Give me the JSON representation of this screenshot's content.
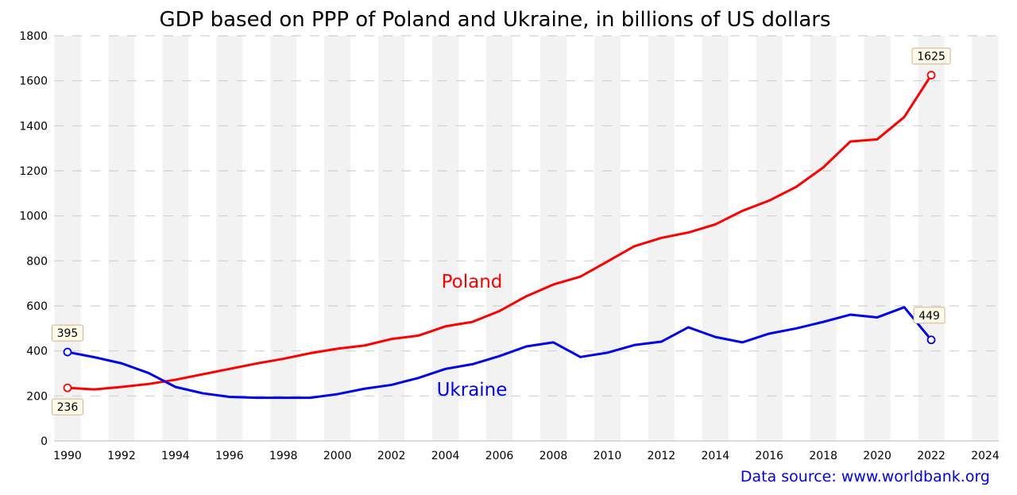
{
  "chart_data": {
    "type": "line",
    "title": "GDP based on PPP of Poland and Ukraine, in billions of US dollars",
    "xlabel": "",
    "ylabel": "",
    "x": [
      1990,
      1991,
      1992,
      1993,
      1994,
      1995,
      1996,
      1997,
      1998,
      1999,
      2000,
      2001,
      2002,
      2003,
      2004,
      2005,
      2006,
      2007,
      2008,
      2009,
      2010,
      2011,
      2012,
      2013,
      2014,
      2015,
      2016,
      2017,
      2018,
      2019,
      2020,
      2021,
      2022
    ],
    "xlim": [
      1989.5,
      2024.5
    ],
    "ylim": [
      0,
      1800
    ],
    "xticks": [
      "1990",
      "1992",
      "1994",
      "1996",
      "1998",
      "2000",
      "2002",
      "2004",
      "2006",
      "2008",
      "2010",
      "2012",
      "2014",
      "2016",
      "2018",
      "2020",
      "2022",
      "2024"
    ],
    "yticks": [
      "0",
      "200",
      "400",
      "600",
      "800",
      "1000",
      "1200",
      "1400",
      "1600",
      "1800"
    ],
    "grid": "horizontal-dashed",
    "alternating_bands": "even-years-shaded",
    "series": [
      {
        "name": "Poland",
        "color": "#ff0000",
        "values": [
          236,
          229,
          240,
          253,
          272,
          296,
          320,
          344,
          365,
          390,
          410,
          424,
          453,
          468,
          509,
          529,
          577,
          643,
          695,
          730,
          797,
          865,
          902,
          926,
          962,
          1022,
          1068,
          1129,
          1215,
          1330,
          1340,
          1439,
          1625
        ],
        "annotations": [
          {
            "year": 1990,
            "label": "236",
            "position": "below"
          },
          {
            "year": 2022,
            "label": "1625",
            "position": "above"
          }
        ]
      },
      {
        "name": "Ukraine",
        "color": "#0000ee",
        "values": [
          395,
          372,
          345,
          302,
          240,
          212,
          196,
          192,
          192,
          192,
          208,
          232,
          249,
          280,
          320,
          341,
          377,
          420,
          438,
          373,
          392,
          426,
          441,
          505,
          462,
          438,
          477,
          500,
          529,
          561,
          549,
          594,
          449
        ],
        "annotations": [
          {
            "year": 1990,
            "label": "395",
            "position": "above"
          },
          {
            "year": 2022,
            "label": "449",
            "position": "above"
          }
        ]
      }
    ],
    "series_labels": [
      {
        "text": "Poland",
        "color": "#ff0000"
      },
      {
        "text": "Ukraine",
        "color": "#0000ee"
      }
    ],
    "source": "Data source: www.worldbank.org"
  },
  "colors": {
    "band": "#f2f2f2",
    "grid": "#d0d0d0",
    "axis": "#c8c8c8",
    "annot_fill": "#fffbe8",
    "annot_stroke": "#d2b48c",
    "source": "#0000ee"
  }
}
